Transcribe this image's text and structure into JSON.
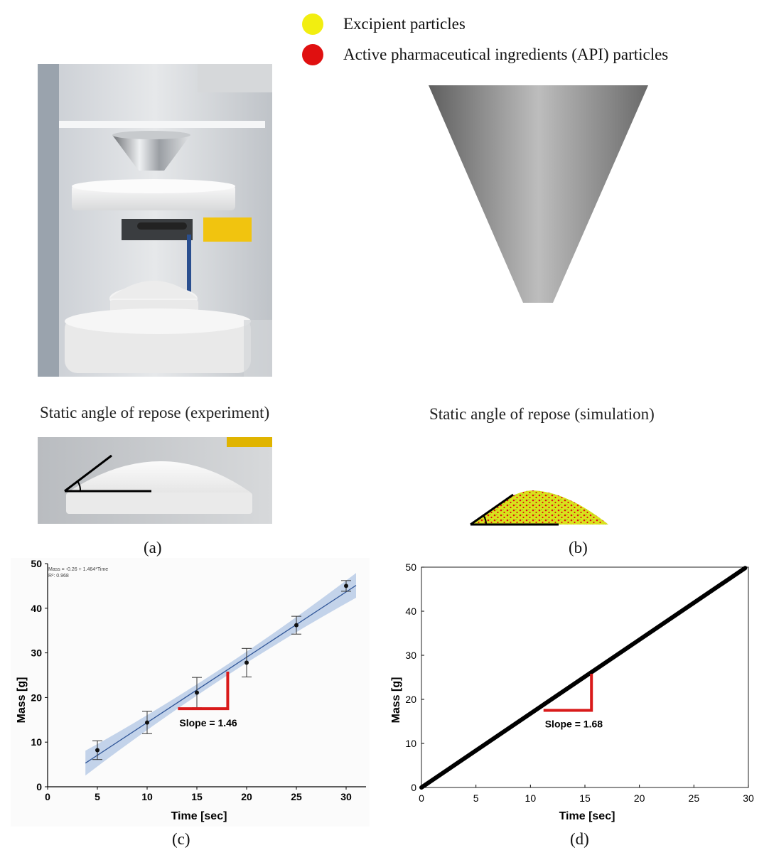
{
  "legend": [
    {
      "label": "Excipient particles",
      "color": "#f2ee10"
    },
    {
      "label": "Active pharmaceutical ingredients (API) particles",
      "color": "#e01010"
    }
  ],
  "captions": {
    "experiment": "Static angle of repose (experiment)",
    "simulation": "Static angle of repose (simulation)"
  },
  "panel_labels": {
    "a": "(a)",
    "b": "(b)",
    "c": "(c)",
    "d": "(d)"
  },
  "colors": {
    "slope_marker": "#d91a1a",
    "fit_band": "#b9cbe6",
    "fit_line": "#2f5597"
  },
  "chart_data": [
    {
      "id": "c",
      "type": "scatter",
      "xlabel": "Time [sec]",
      "ylabel": "Mass [g]",
      "xlim": [
        0,
        32
      ],
      "ylim": [
        0,
        50
      ],
      "xticks": [
        0,
        5,
        10,
        15,
        20,
        25,
        30
      ],
      "yticks": [
        0,
        10,
        20,
        30,
        40,
        50
      ],
      "points": [
        {
          "x": 5,
          "y": 8.2,
          "err": 2.1
        },
        {
          "x": 10,
          "y": 14.4,
          "err": 2.5
        },
        {
          "x": 15,
          "y": 21.1,
          "err": 3.4
        },
        {
          "x": 20,
          "y": 27.8,
          "err": 3.2
        },
        {
          "x": 25,
          "y": 36.2,
          "err": 2.0
        },
        {
          "x": 30,
          "y": 45.0,
          "err": 1.2
        }
      ],
      "fit": {
        "intercept": -0.26,
        "slope": 1.464,
        "x_range": [
          3.8,
          31
        ]
      },
      "fit_equation": "Mass = -0.26 + 1.464*Time",
      "r_squared": "R²: 0.968",
      "slope_label": "Slope = 1.46",
      "slope_marker": {
        "x0": 13.1,
        "x1": 18.1,
        "y_low": 17.5,
        "y_high": 25.8
      }
    },
    {
      "id": "d",
      "type": "line",
      "xlabel": "Time [sec]",
      "ylabel": "Mass [g]",
      "xlim": [
        0,
        30
      ],
      "ylim": [
        0,
        50
      ],
      "xticks": [
        0,
        5,
        10,
        15,
        20,
        25,
        30
      ],
      "yticks": [
        0,
        10,
        20,
        30,
        40,
        50
      ],
      "line": {
        "x": [
          0,
          29.7
        ],
        "y": [
          0,
          49.8
        ]
      },
      "slope_label": "Slope = 1.68",
      "slope_marker": {
        "x0": 11.2,
        "x1": 15.6,
        "y_low": 17.5,
        "y_high": 25.8
      }
    }
  ]
}
